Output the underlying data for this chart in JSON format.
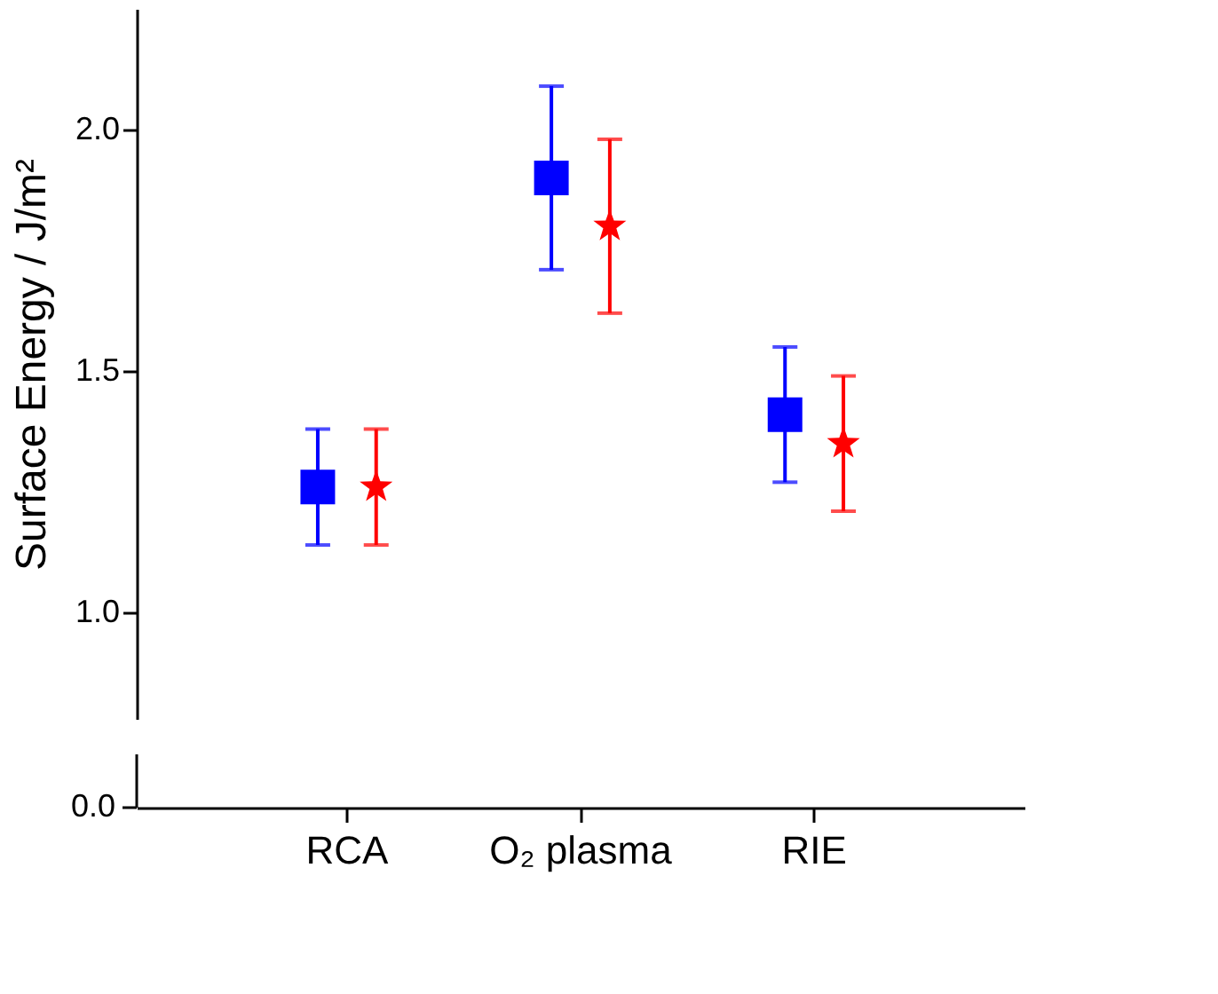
{
  "chart_data": {
    "type": "scatter",
    "ylabel": "Surface Energy / J/m²",
    "categories": [
      "RCA",
      "O₂ plasma",
      "RIE"
    ],
    "ylim": [
      0.78,
      2.25
    ],
    "yticks": [
      {
        "value": 1.0,
        "label": "1.0"
      },
      {
        "value": 1.5,
        "label": "1.5"
      },
      {
        "value": 2.0,
        "label": "2.0"
      }
    ],
    "grid": false,
    "legend": false,
    "annotations": [
      "0.0"
    ],
    "series": [
      {
        "color": "#0000ff",
        "marker": "square",
        "values": [
          1.26,
          1.9,
          1.41
        ],
        "errors": [
          [
            1.14,
            1.38
          ],
          [
            1.71,
            2.09
          ],
          [
            1.27,
            1.55
          ]
        ]
      },
      {
        "color": "#ff0000",
        "marker": "star",
        "values": [
          1.26,
          1.8,
          1.35
        ],
        "errors": [
          [
            1.14,
            1.38
          ],
          [
            1.62,
            1.98
          ],
          [
            1.21,
            1.49
          ]
        ]
      }
    ]
  }
}
